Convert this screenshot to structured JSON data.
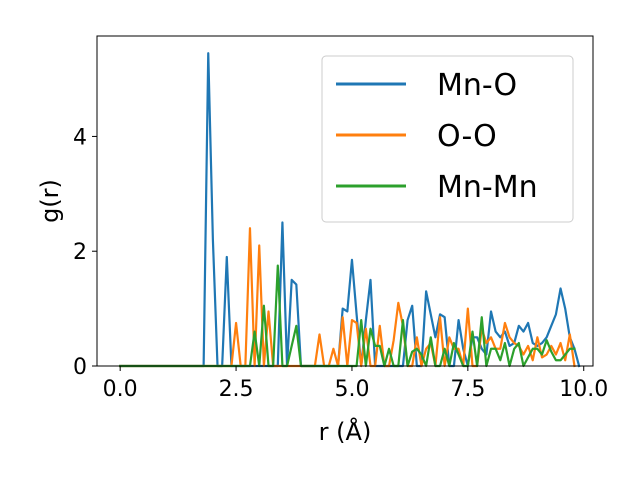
{
  "chart_data": {
    "type": "line",
    "title": "",
    "xlabel": "r (Å)",
    "ylabel": "g(r)",
    "xlim": [
      -0.5,
      10.2
    ],
    "ylim": [
      0,
      5.75
    ],
    "xticks": [
      0.0,
      2.5,
      5.0,
      7.5,
      10.0
    ],
    "xtick_labels": [
      "0.0",
      "2.5",
      "5.0",
      "7.5",
      "10.0"
    ],
    "yticks": [
      0,
      2,
      4
    ],
    "ytick_labels": [
      "0",
      "2",
      "4"
    ],
    "grid": false,
    "legend": "top-right",
    "series": [
      {
        "name": "Mn-O",
        "color": "#1f77b4",
        "points": [
          [
            0,
            0
          ],
          [
            1.8,
            0
          ],
          [
            1.9,
            5.45
          ],
          [
            2.0,
            2.2
          ],
          [
            2.1,
            0
          ],
          [
            2.2,
            0
          ],
          [
            2.3,
            1.9
          ],
          [
            2.4,
            0
          ],
          [
            2.5,
            0
          ],
          [
            2.6,
            0
          ],
          [
            2.7,
            0
          ],
          [
            2.8,
            0
          ],
          [
            2.9,
            0
          ],
          [
            3.0,
            0
          ],
          [
            3.1,
            0
          ],
          [
            3.2,
            0
          ],
          [
            3.3,
            0
          ],
          [
            3.4,
            0
          ],
          [
            3.5,
            2.5
          ],
          [
            3.6,
            0
          ],
          [
            3.7,
            1.5
          ],
          [
            3.8,
            1.42
          ],
          [
            3.9,
            0
          ],
          [
            4.0,
            0
          ],
          [
            4.1,
            0
          ],
          [
            4.2,
            0
          ],
          [
            4.3,
            0
          ],
          [
            4.4,
            0
          ],
          [
            4.5,
            0
          ],
          [
            4.6,
            0
          ],
          [
            4.7,
            0
          ],
          [
            4.8,
            1.0
          ],
          [
            4.9,
            0.95
          ],
          [
            5.0,
            1.85
          ],
          [
            5.1,
            0.9
          ],
          [
            5.2,
            0
          ],
          [
            5.3,
            0.8
          ],
          [
            5.4,
            1.5
          ],
          [
            5.5,
            0
          ],
          [
            5.6,
            0
          ],
          [
            5.7,
            0
          ],
          [
            5.8,
            0
          ],
          [
            5.9,
            0
          ],
          [
            6.0,
            0
          ],
          [
            6.1,
            0
          ],
          [
            6.2,
            0.8
          ],
          [
            6.3,
            1.05
          ],
          [
            6.4,
            0
          ],
          [
            6.5,
            0
          ],
          [
            6.6,
            1.3
          ],
          [
            6.7,
            0.9
          ],
          [
            6.8,
            0.5
          ],
          [
            6.9,
            0.9
          ],
          [
            7.0,
            0.85
          ],
          [
            7.1,
            0
          ],
          [
            7.2,
            0
          ],
          [
            7.3,
            0.8
          ],
          [
            7.4,
            0.3
          ],
          [
            7.5,
            0
          ],
          [
            7.6,
            0.5
          ],
          [
            7.7,
            0.5
          ],
          [
            7.8,
            0.3
          ],
          [
            7.9,
            0.2
          ],
          [
            8.0,
            0.95
          ],
          [
            8.1,
            0.6
          ],
          [
            8.2,
            0.5
          ],
          [
            8.3,
            0.6
          ],
          [
            8.4,
            0.35
          ],
          [
            8.5,
            0.4
          ],
          [
            8.6,
            0.7
          ],
          [
            8.7,
            0.6
          ],
          [
            8.8,
            0.75
          ],
          [
            8.9,
            0.4
          ],
          [
            9.0,
            0.35
          ],
          [
            9.1,
            0.4
          ],
          [
            9.2,
            0.5
          ],
          [
            9.3,
            0.7
          ],
          [
            9.4,
            0.9
          ],
          [
            9.5,
            1.35
          ],
          [
            9.6,
            1.0
          ],
          [
            9.7,
            0.5
          ],
          [
            9.8,
            0.3
          ],
          [
            9.9,
            0
          ]
        ]
      },
      {
        "name": "O-O",
        "color": "#ff7f0e",
        "points": [
          [
            0,
            0
          ],
          [
            2.4,
            0
          ],
          [
            2.5,
            0.75
          ],
          [
            2.6,
            0
          ],
          [
            2.7,
            0
          ],
          [
            2.8,
            2.4
          ],
          [
            2.9,
            0
          ],
          [
            3.0,
            2.1
          ],
          [
            3.1,
            0
          ],
          [
            3.2,
            0.95
          ],
          [
            3.3,
            0
          ],
          [
            3.4,
            0
          ],
          [
            3.5,
            0
          ],
          [
            3.6,
            0
          ],
          [
            3.7,
            0
          ],
          [
            3.8,
            0
          ],
          [
            3.9,
            0
          ],
          [
            4.0,
            0
          ],
          [
            4.1,
            0
          ],
          [
            4.2,
            0
          ],
          [
            4.3,
            0.55
          ],
          [
            4.4,
            0
          ],
          [
            4.5,
            0
          ],
          [
            4.6,
            0.3
          ],
          [
            4.7,
            0
          ],
          [
            4.8,
            0.85
          ],
          [
            4.9,
            0
          ],
          [
            5.0,
            0.8
          ],
          [
            5.1,
            0.75
          ],
          [
            5.2,
            0
          ],
          [
            5.3,
            0.65
          ],
          [
            5.4,
            0
          ],
          [
            5.5,
            0
          ],
          [
            5.6,
            0.7
          ],
          [
            5.7,
            0
          ],
          [
            5.8,
            0
          ],
          [
            5.9,
            0.45
          ],
          [
            6.0,
            1.1
          ],
          [
            6.1,
            0.7
          ],
          [
            6.2,
            0
          ],
          [
            6.3,
            0
          ],
          [
            6.4,
            0.5
          ],
          [
            6.5,
            0
          ],
          [
            6.6,
            0.3
          ],
          [
            6.7,
            0.4
          ],
          [
            6.8,
            0
          ],
          [
            6.9,
            0.85
          ],
          [
            7.0,
            0
          ],
          [
            7.1,
            0.5
          ],
          [
            7.2,
            0.3
          ],
          [
            7.3,
            0.3
          ],
          [
            7.4,
            0
          ],
          [
            7.5,
            1.0
          ],
          [
            7.6,
            0
          ],
          [
            7.7,
            0
          ],
          [
            7.8,
            0.65
          ],
          [
            7.9,
            0.4
          ],
          [
            8.0,
            0.5
          ],
          [
            8.1,
            0.3
          ],
          [
            8.2,
            0.3
          ],
          [
            8.3,
            0.75
          ],
          [
            8.4,
            0.5
          ],
          [
            8.5,
            0.4
          ],
          [
            8.6,
            0.35
          ],
          [
            8.7,
            0.2
          ],
          [
            8.8,
            0.35
          ],
          [
            8.9,
            0.1
          ],
          [
            9.0,
            0.5
          ],
          [
            9.1,
            0.15
          ],
          [
            9.2,
            0.2
          ],
          [
            9.3,
            0.35
          ],
          [
            9.4,
            0.2
          ],
          [
            9.5,
            0.4
          ],
          [
            9.6,
            0.1
          ],
          [
            9.7,
            0.55
          ],
          [
            9.8,
            0
          ]
        ]
      },
      {
        "name": "Mn-Mn",
        "color": "#2ca02c",
        "points": [
          [
            0,
            0
          ],
          [
            2.8,
            0
          ],
          [
            2.9,
            0.6
          ],
          [
            3.0,
            0
          ],
          [
            3.1,
            1.05
          ],
          [
            3.2,
            0
          ],
          [
            3.3,
            0
          ],
          [
            3.4,
            1.75
          ],
          [
            3.5,
            0
          ],
          [
            3.6,
            0
          ],
          [
            3.7,
            0.35
          ],
          [
            3.8,
            0.7
          ],
          [
            3.9,
            0
          ],
          [
            4.0,
            0
          ],
          [
            4.1,
            0
          ],
          [
            4.2,
            0
          ],
          [
            4.3,
            0
          ],
          [
            4.4,
            0
          ],
          [
            4.5,
            0
          ],
          [
            4.6,
            0
          ],
          [
            4.7,
            0
          ],
          [
            4.8,
            0
          ],
          [
            4.9,
            0
          ],
          [
            5.0,
            0
          ],
          [
            5.1,
            0
          ],
          [
            5.2,
            0.8
          ],
          [
            5.3,
            0
          ],
          [
            5.4,
            0.65
          ],
          [
            5.5,
            0.35
          ],
          [
            5.6,
            0.35
          ],
          [
            5.7,
            0
          ],
          [
            5.8,
            0.3
          ],
          [
            5.9,
            0
          ],
          [
            6.0,
            0
          ],
          [
            6.1,
            0.8
          ],
          [
            6.2,
            0
          ],
          [
            6.3,
            0.25
          ],
          [
            6.4,
            0.3
          ],
          [
            6.5,
            0.2
          ],
          [
            6.6,
            0
          ],
          [
            6.7,
            0.5
          ],
          [
            6.8,
            0
          ],
          [
            6.9,
            0
          ],
          [
            7.0,
            0.3
          ],
          [
            7.1,
            0
          ],
          [
            7.2,
            0.4
          ],
          [
            7.3,
            0.2
          ],
          [
            7.4,
            0
          ],
          [
            7.5,
            0
          ],
          [
            7.6,
            0.6
          ],
          [
            7.7,
            0
          ],
          [
            7.8,
            0.85
          ],
          [
            7.9,
            0
          ],
          [
            8.0,
            0.3
          ],
          [
            8.1,
            0.3
          ],
          [
            8.2,
            0.1
          ],
          [
            8.3,
            0.4
          ],
          [
            8.4,
            0
          ],
          [
            8.5,
            0.3
          ],
          [
            8.6,
            0.4
          ],
          [
            8.7,
            0
          ],
          [
            8.8,
            0.15
          ],
          [
            8.9,
            0.3
          ],
          [
            9.0,
            0.3
          ],
          [
            9.1,
            0.2
          ],
          [
            9.2,
            0.45
          ],
          [
            9.3,
            0.25
          ],
          [
            9.4,
            0.1
          ],
          [
            9.5,
            0.1
          ],
          [
            9.6,
            0.2
          ],
          [
            9.7,
            0.3
          ],
          [
            9.8,
            0.3
          ]
        ]
      }
    ]
  }
}
